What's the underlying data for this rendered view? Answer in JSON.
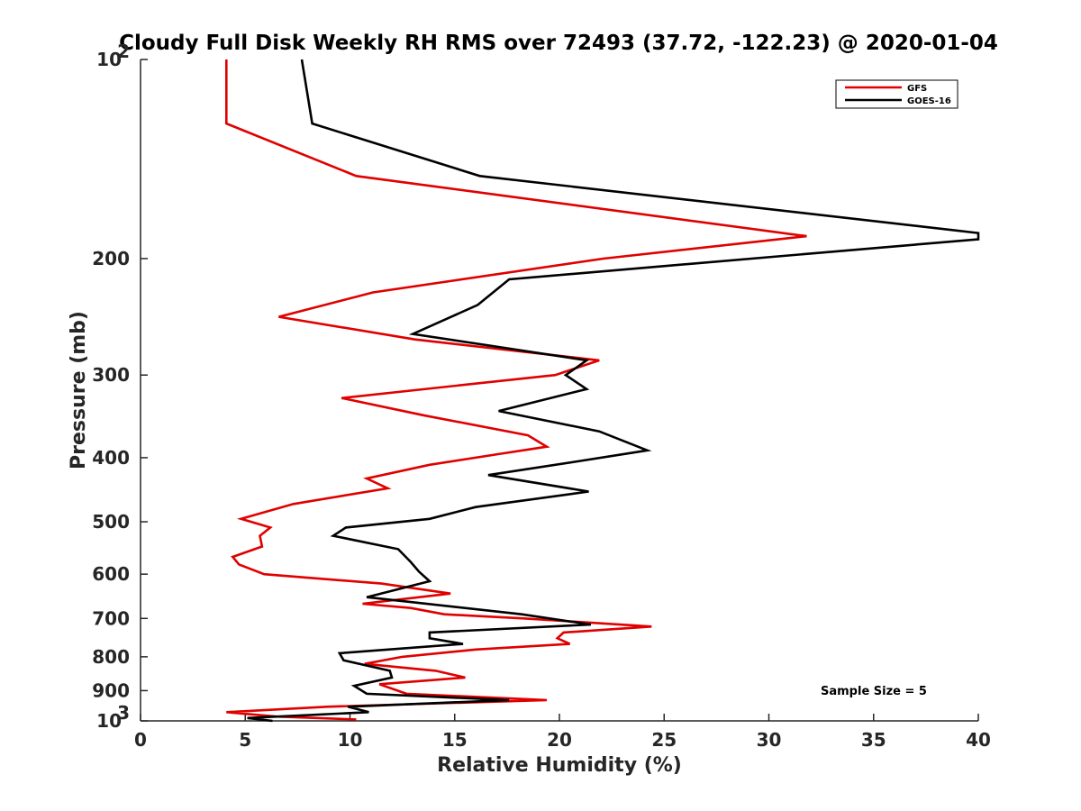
{
  "chart_data": {
    "type": "line",
    "title": "Cloudy Full Disk Weekly RH RMS over 72493 (37.72, -122.23) @ 2020-01-04",
    "xlabel": "Relative Humidity (%)",
    "ylabel": "Pressure (mb)",
    "xlim": [
      0,
      40
    ],
    "ylim": [
      100,
      1000
    ],
    "y_scale": "log",
    "y_reversed": true,
    "x_ticks": [
      "0",
      "5",
      "10",
      "15",
      "20",
      "25",
      "30",
      "35",
      "40"
    ],
    "y_ticks": [
      {
        "value": 100,
        "base": "10",
        "exp": "2"
      },
      {
        "value": 200,
        "label": "200"
      },
      {
        "value": 300,
        "label": "300"
      },
      {
        "value": 400,
        "label": "400"
      },
      {
        "value": 500,
        "label": "500"
      },
      {
        "value": 600,
        "label": "600"
      },
      {
        "value": 700,
        "label": "700"
      },
      {
        "value": 800,
        "label": "800"
      },
      {
        "value": 900,
        "label": "900"
      },
      {
        "value": 1000,
        "base": "10",
        "exp": "3"
      }
    ],
    "grid": false,
    "legend_position": "top-right",
    "annotation": "Sample Size = 5",
    "series": [
      {
        "name": "GFS",
        "color": "#e00000",
        "points": [
          [
            4.1,
            100
          ],
          [
            4.1,
            125
          ],
          [
            10.3,
            150
          ],
          [
            31.8,
            185
          ],
          [
            22.1,
            200
          ],
          [
            11.1,
            225
          ],
          [
            6.6,
            245
          ],
          [
            13.1,
            265
          ],
          [
            21.9,
            285
          ],
          [
            19.8,
            300
          ],
          [
            9.6,
            325
          ],
          [
            13.5,
            345
          ],
          [
            18.5,
            370
          ],
          [
            19.4,
            385
          ],
          [
            17.1,
            395
          ],
          [
            13.8,
            410
          ],
          [
            10.8,
            430
          ],
          [
            11.8,
            445
          ],
          [
            7.3,
            470
          ],
          [
            4.8,
            495
          ],
          [
            6.2,
            510
          ],
          [
            5.7,
            525
          ],
          [
            5.8,
            545
          ],
          [
            4.4,
            565
          ],
          [
            4.7,
            580
          ],
          [
            5.9,
            600
          ],
          [
            11.5,
            620
          ],
          [
            14.8,
            642
          ],
          [
            10.6,
            665
          ],
          [
            12.9,
            675
          ],
          [
            14.5,
            690
          ],
          [
            18.3,
            700
          ],
          [
            24.4,
            720
          ],
          [
            20.2,
            735
          ],
          [
            19.9,
            750
          ],
          [
            20.5,
            765
          ],
          [
            16.0,
            780
          ],
          [
            12.5,
            800
          ],
          [
            10.7,
            820
          ],
          [
            14.1,
            840
          ],
          [
            15.5,
            860
          ],
          [
            11.4,
            880
          ],
          [
            12.7,
            910
          ],
          [
            19.4,
            930
          ],
          [
            8.9,
            952
          ],
          [
            4.1,
            970
          ],
          [
            6.5,
            985
          ],
          [
            10.3,
            995
          ]
        ]
      },
      {
        "name": "GOES-16",
        "color": "#000000",
        "points": [
          [
            7.7,
            100
          ],
          [
            8.2,
            125
          ],
          [
            16.2,
            150
          ],
          [
            40.0,
            183
          ],
          [
            40.0,
            187
          ],
          [
            17.6,
            215
          ],
          [
            16.1,
            235
          ],
          [
            13.0,
            260
          ],
          [
            21.3,
            285
          ],
          [
            20.3,
            300
          ],
          [
            21.3,
            315
          ],
          [
            17.1,
            340
          ],
          [
            21.9,
            365
          ],
          [
            24.2,
            390
          ],
          [
            20.9,
            405
          ],
          [
            16.6,
            425
          ],
          [
            21.4,
            450
          ],
          [
            16.0,
            475
          ],
          [
            13.8,
            495
          ],
          [
            9.8,
            510
          ],
          [
            9.2,
            525
          ],
          [
            12.3,
            550
          ],
          [
            12.9,
            575
          ],
          [
            13.3,
            595
          ],
          [
            13.8,
            615
          ],
          [
            10.8,
            650
          ],
          [
            18.2,
            690
          ],
          [
            21.5,
            715
          ],
          [
            13.8,
            735
          ],
          [
            13.8,
            750
          ],
          [
            15.4,
            765
          ],
          [
            9.5,
            790
          ],
          [
            9.7,
            810
          ],
          [
            11.9,
            840
          ],
          [
            12.0,
            860
          ],
          [
            10.2,
            885
          ],
          [
            10.8,
            910
          ],
          [
            17.6,
            930
          ],
          [
            9.9,
            952
          ],
          [
            10.9,
            970
          ],
          [
            5.1,
            990
          ],
          [
            6.3,
            1000
          ]
        ]
      }
    ]
  }
}
